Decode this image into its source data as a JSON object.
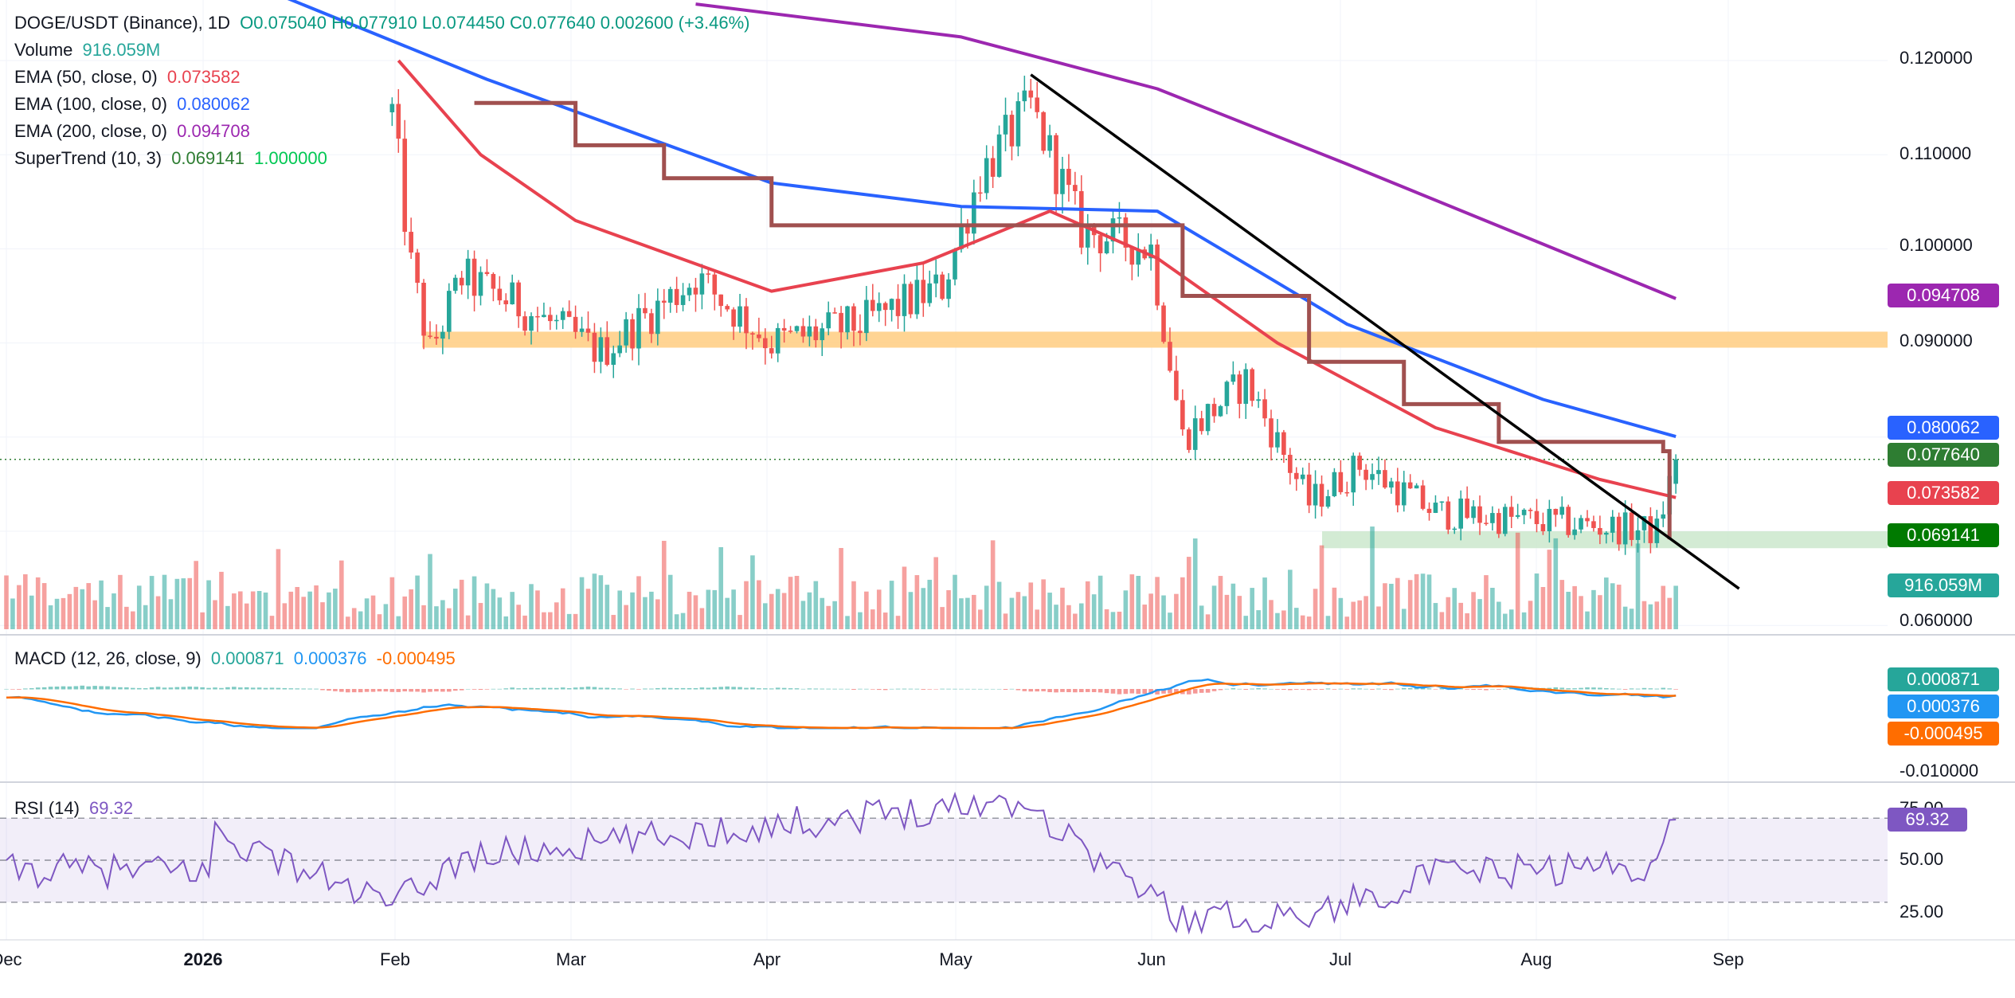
{
  "header": {
    "symbol": "DOGE/USDT (Binance), 1D",
    "ohlc": "O0.075040  H0.077910  L0.074450  C0.077640  0.002600 (+3.46%)"
  },
  "legend": {
    "volume_label": "Volume",
    "volume_value": "916.059M",
    "ema50_label": "EMA (50, close, 0)",
    "ema50_value": "0.073582",
    "ema100_label": "EMA (100, close, 0)",
    "ema100_value": "0.080062",
    "ema200_label": "EMA (200, close, 0)",
    "ema200_value": "0.094708",
    "supertrend_label": "SuperTrend (10, 3)",
    "supertrend_value": "0.069141",
    "supertrend_dir": "1.000000",
    "macd_label": "MACD (12, 26, close, 9)",
    "macd_hist": "0.000871",
    "macd_value": "0.000376",
    "macd_signal": "-0.000495",
    "rsi_label": "RSI (14)",
    "rsi_value": "69.32"
  },
  "price_axis": [
    "0.120000",
    "0.110000",
    "0.100000",
    "0.090000",
    "0.060000"
  ],
  "macd_axis": [
    "-0.010000"
  ],
  "rsi_axis": [
    "75.00",
    "50.00",
    "25.00"
  ],
  "tags": {
    "ema200": "0.094708",
    "ema100": "0.080062",
    "close": "0.077640",
    "ema50": "0.073582",
    "supertrend": "0.069141",
    "volume": "916.059M",
    "macd_hist": "0.000871",
    "macd": "0.000376",
    "macd_signal": "-0.000495",
    "rsi": "69.32"
  },
  "colors": {
    "up": "#26a69a",
    "down": "#ef5350",
    "ema50": "#e8424f",
    "ema100": "#2962ff",
    "ema200": "#9c27b0",
    "supertrend_up": "#4caf50",
    "supertrend_down": "#a0504f",
    "resistance_zone": "#ffcc80",
    "support_zone": "#c8e6c9",
    "rsi": "#7e57c2",
    "macd": "#2196f3",
    "signal": "#ff6d00",
    "trendline": "#000000"
  },
  "x_axis_labels": [
    "Dec",
    "2026",
    "Feb",
    "Mar",
    "Apr",
    "May",
    "Jun",
    "Jul",
    "Aug",
    "Sep"
  ],
  "chart_data": {
    "type": "candlestick",
    "title": "DOGE/USDT (Binance), 1D",
    "ylim": [
      0.058,
      0.125
    ],
    "months": [
      "Dec",
      "2026",
      "Feb",
      "Mar",
      "Apr",
      "May",
      "Jun",
      "Jul",
      "Aug",
      "Sep"
    ],
    "last_close": 0.07764,
    "resistance_zone": [
      0.0895,
      0.0912
    ],
    "support_zone": [
      0.0682,
      0.07
    ],
    "trendline": {
      "from": {
        "date": "2026-05-12",
        "value": 0.1185
      },
      "to": {
        "date": "2026-09-01",
        "value": 0.0639
      }
    },
    "closes": [
      {
        "date": "2026-01-31",
        "value": 0.1145
      },
      {
        "date": "2026-02-03",
        "value": 0.098
      },
      {
        "date": "2026-02-06",
        "value": 0.089
      },
      {
        "date": "2026-02-11",
        "value": 0.097
      },
      {
        "date": "2026-02-20",
        "value": 0.094
      },
      {
        "date": "2026-03-05",
        "value": 0.089
      },
      {
        "date": "2026-03-20",
        "value": 0.097
      },
      {
        "date": "2026-04-01",
        "value": 0.09
      },
      {
        "date": "2026-04-15",
        "value": 0.092
      },
      {
        "date": "2026-04-28",
        "value": 0.096
      },
      {
        "date": "2026-05-04",
        "value": 0.108
      },
      {
        "date": "2026-05-12",
        "value": 0.115
      },
      {
        "date": "2026-05-20",
        "value": 0.102
      },
      {
        "date": "2026-05-31",
        "value": 0.1
      },
      {
        "date": "2026-06-05",
        "value": 0.08
      },
      {
        "date": "2026-06-15",
        "value": 0.086
      },
      {
        "date": "2026-06-25",
        "value": 0.073
      },
      {
        "date": "2026-07-03",
        "value": 0.077
      },
      {
        "date": "2026-07-15",
        "value": 0.072
      },
      {
        "date": "2026-08-01",
        "value": 0.071
      },
      {
        "date": "2026-08-19",
        "value": 0.07
      },
      {
        "date": "2026-08-22",
        "value": 0.07764
      }
    ],
    "ema50": [
      {
        "date": "2026-02-01",
        "value": 0.12
      },
      {
        "date": "2026-02-14",
        "value": 0.11
      },
      {
        "date": "2026-03-01",
        "value": 0.103
      },
      {
        "date": "2026-04-01",
        "value": 0.0955
      },
      {
        "date": "2026-04-25",
        "value": 0.0985
      },
      {
        "date": "2026-05-15",
        "value": 0.104
      },
      {
        "date": "2026-06-01",
        "value": 0.099
      },
      {
        "date": "2026-06-20",
        "value": 0.09
      },
      {
        "date": "2026-07-15",
        "value": 0.081
      },
      {
        "date": "2026-08-10",
        "value": 0.0755
      },
      {
        "date": "2026-08-22",
        "value": 0.07358
      }
    ],
    "ema100": [
      {
        "date": "2026-01-02",
        "value": 0.13
      },
      {
        "date": "2026-02-15",
        "value": 0.118
      },
      {
        "date": "2026-04-01",
        "value": 0.107
      },
      {
        "date": "2026-05-01",
        "value": 0.1045
      },
      {
        "date": "2026-06-01",
        "value": 0.104
      },
      {
        "date": "2026-07-01",
        "value": 0.092
      },
      {
        "date": "2026-08-01",
        "value": 0.084
      },
      {
        "date": "2026-08-22",
        "value": 0.08006
      }
    ],
    "ema200": [
      {
        "date": "2026-03-20",
        "value": 0.126
      },
      {
        "date": "2026-05-01",
        "value": 0.1225
      },
      {
        "date": "2026-06-01",
        "value": 0.117
      },
      {
        "date": "2026-07-01",
        "value": 0.109
      },
      {
        "date": "2026-08-01",
        "value": 0.1005
      },
      {
        "date": "2026-08-22",
        "value": 0.09471
      }
    ],
    "supertrend": [
      {
        "date": "2026-02-13",
        "value": 0.1155,
        "trend": "down"
      },
      {
        "date": "2026-02-25",
        "value": 0.1155,
        "trend": "down"
      },
      {
        "date": "2026-03-01",
        "value": 0.111,
        "trend": "down"
      },
      {
        "date": "2026-03-10",
        "value": 0.111,
        "trend": "down"
      },
      {
        "date": "2026-03-15",
        "value": 0.1075,
        "trend": "down"
      },
      {
        "date": "2026-03-25",
        "value": 0.1075,
        "trend": "down"
      },
      {
        "date": "2026-04-01",
        "value": 0.1025,
        "trend": "down"
      },
      {
        "date": "2026-04-28",
        "value": 0.1025,
        "trend": "down"
      },
      {
        "date": "2026-06-05",
        "value": 0.095,
        "trend": "down"
      },
      {
        "date": "2026-06-25",
        "value": 0.088,
        "trend": "down"
      },
      {
        "date": "2026-07-10",
        "value": 0.0835,
        "trend": "down"
      },
      {
        "date": "2026-07-25",
        "value": 0.0795,
        "trend": "down"
      },
      {
        "date": "2026-08-20",
        "value": 0.0785,
        "trend": "down"
      },
      {
        "date": "2026-08-21",
        "value": 0.069141,
        "trend": "up"
      }
    ],
    "macd": {
      "macd": 0.000376,
      "signal": -0.000495,
      "histogram": 0.000871,
      "ylim": [
        -0.012,
        0.005
      ]
    },
    "rsi": {
      "value": 69.32,
      "levels": [
        30,
        50,
        70
      ],
      "ylim": [
        15,
        85
      ],
      "points": [
        {
          "date": "2026-01-03",
          "value": 63
        },
        {
          "date": "2026-01-31",
          "value": 28
        },
        {
          "date": "2026-02-11",
          "value": 51
        },
        {
          "date": "2026-05-10",
          "value": 79
        },
        {
          "date": "2026-06-05",
          "value": 22
        },
        {
          "date": "2026-06-25",
          "value": 24
        },
        {
          "date": "2026-07-15",
          "value": 43
        },
        {
          "date": "2026-08-19",
          "value": 48
        },
        {
          "date": "2026-08-22",
          "value": 69.32
        }
      ]
    }
  }
}
